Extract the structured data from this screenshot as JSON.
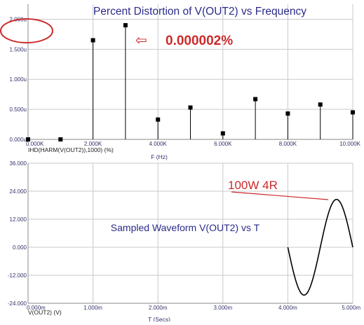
{
  "chart_data": [
    {
      "type": "bar",
      "title": "Percent Distortion of V(OUT2) vs Frequency",
      "trace_label": "IHD(HARM(V(OUT2)),1000) (%)",
      "xlabel": "F (Hz)",
      "x_ticks": [
        "0.000K",
        "2.000K",
        "4.000K",
        "6.000K",
        "8.000K",
        "10.000K"
      ],
      "y_ticks": [
        "0.000u",
        "0.500u",
        "1.000u",
        "1.500u",
        "2.000u"
      ],
      "xlim": [
        0,
        10000
      ],
      "ylim": [
        0,
        2.25
      ],
      "y_unit": "u",
      "x": [
        0,
        1000,
        2000,
        3000,
        4000,
        5000,
        6000,
        7000,
        8000,
        9000,
        10000
      ],
      "values": [
        0.0,
        0.0,
        1.65,
        1.9,
        0.33,
        0.53,
        0.1,
        0.67,
        0.43,
        0.58,
        0.45
      ],
      "grid": true,
      "annotation": "0.000002%",
      "annotation_arrow": "⇦",
      "highlight_color": "#cc2a2a",
      "marker_color": "#000000"
    },
    {
      "type": "line",
      "title": "Sampled Waveform  V(OUT2) vs T",
      "trace_label": "V(OUT2) (V)",
      "xlabel": "T (Secs)",
      "x_ticks": [
        "0.000m",
        "1.000m",
        "2.000m",
        "3.000m",
        "4.000m",
        "5.000m"
      ],
      "y_ticks": [
        "-24.000",
        "-12.000",
        "0.000",
        "12.000",
        "24.000",
        "36.000"
      ],
      "xlim": [
        0,
        5
      ],
      "ylim": [
        -24,
        36
      ],
      "x_unit": "ms",
      "waveform": {
        "start": 4.0,
        "end": 5.0,
        "frequency_khz": 1,
        "amplitude": 20.5,
        "offset": 0
      },
      "grid": true,
      "annotation": "100W 4R",
      "highlight_color": "#cc2a2a",
      "line_color": "#000000"
    }
  ]
}
